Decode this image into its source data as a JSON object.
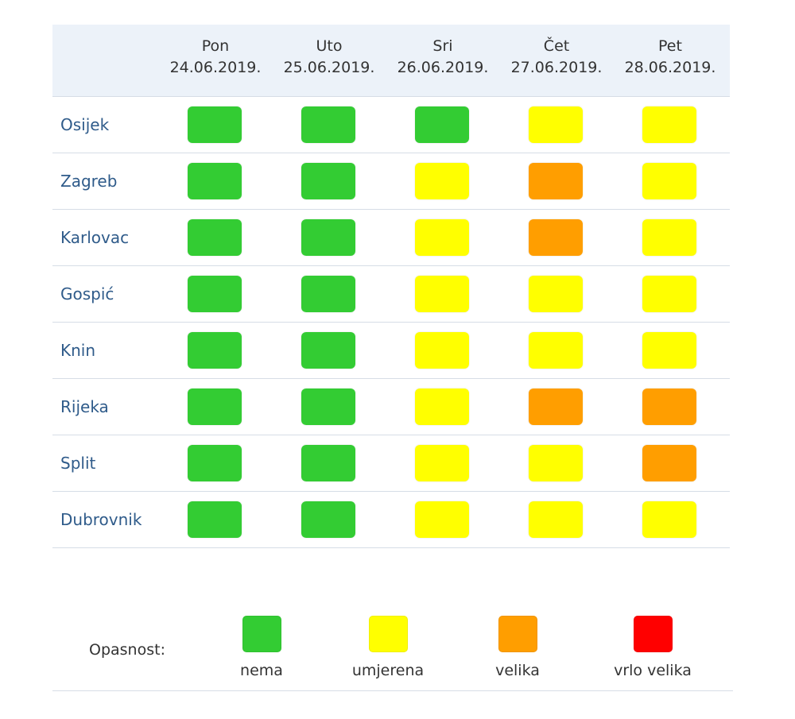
{
  "colors": {
    "nema": "#33cc33",
    "umjerena": "#ffff00",
    "velika": "#ff9e00",
    "vrlo_velika": "#ff0000"
  },
  "days": [
    {
      "day": "Pon",
      "date": "24.06.2019."
    },
    {
      "day": "Uto",
      "date": "25.06.2019."
    },
    {
      "day": "Sri",
      "date": "26.06.2019."
    },
    {
      "day": "Čet",
      "date": "27.06.2019."
    },
    {
      "day": "Pet",
      "date": "28.06.2019."
    }
  ],
  "rows": [
    {
      "city": "Osijek",
      "levels": [
        "nema",
        "nema",
        "nema",
        "umjerena",
        "umjerena"
      ]
    },
    {
      "city": "Zagreb",
      "levels": [
        "nema",
        "nema",
        "umjerena",
        "velika",
        "umjerena"
      ]
    },
    {
      "city": "Karlovac",
      "levels": [
        "nema",
        "nema",
        "umjerena",
        "velika",
        "umjerena"
      ]
    },
    {
      "city": "Gospić",
      "levels": [
        "nema",
        "nema",
        "umjerena",
        "umjerena",
        "umjerena"
      ]
    },
    {
      "city": "Knin",
      "levels": [
        "nema",
        "nema",
        "umjerena",
        "umjerena",
        "umjerena"
      ]
    },
    {
      "city": "Rijeka",
      "levels": [
        "nema",
        "nema",
        "umjerena",
        "velika",
        "velika"
      ]
    },
    {
      "city": "Split",
      "levels": [
        "nema",
        "nema",
        "umjerena",
        "umjerena",
        "velika"
      ]
    },
    {
      "city": "Dubrovnik",
      "levels": [
        "nema",
        "nema",
        "umjerena",
        "umjerena",
        "umjerena"
      ]
    }
  ],
  "legend": {
    "label": "Opasnost:",
    "items": [
      {
        "key": "nema",
        "label": "nema"
      },
      {
        "key": "umjerena",
        "label": "umjerena"
      },
      {
        "key": "velika",
        "label": "velika"
      },
      {
        "key": "vrlo_velika",
        "label": "vrlo velika"
      }
    ]
  }
}
